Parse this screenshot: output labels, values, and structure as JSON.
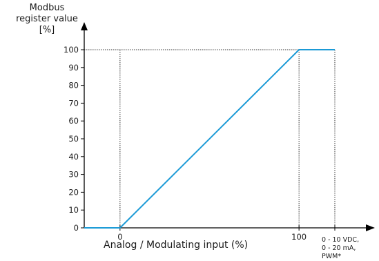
{
  "chart_data": {
    "type": "line",
    "ylabel_lines": [
      "Modbus",
      "register value",
      "[%]"
    ],
    "xlabel": "Analog / Modulating input (%)",
    "x_tick_labels": [
      {
        "x": 0,
        "label": "0"
      },
      {
        "x": 100,
        "label": "100"
      }
    ],
    "x_unit_lines": [
      "0 - 10 VDC,",
      "0 - 20 mA,",
      "PWM*"
    ],
    "y_ticks": [
      0,
      10,
      20,
      30,
      40,
      50,
      60,
      70,
      80,
      90,
      100
    ],
    "xlim": [
      -20,
      120
    ],
    "ylim": [
      0,
      100
    ],
    "series": [
      {
        "color": "#1b9ad6",
        "points": [
          [
            -20,
            0
          ],
          [
            0,
            0
          ],
          [
            100,
            100
          ],
          [
            120,
            100
          ]
        ]
      }
    ],
    "reference_lines": {
      "vertical_x": [
        0,
        100,
        120
      ],
      "horizontal_y": [
        100
      ]
    }
  }
}
